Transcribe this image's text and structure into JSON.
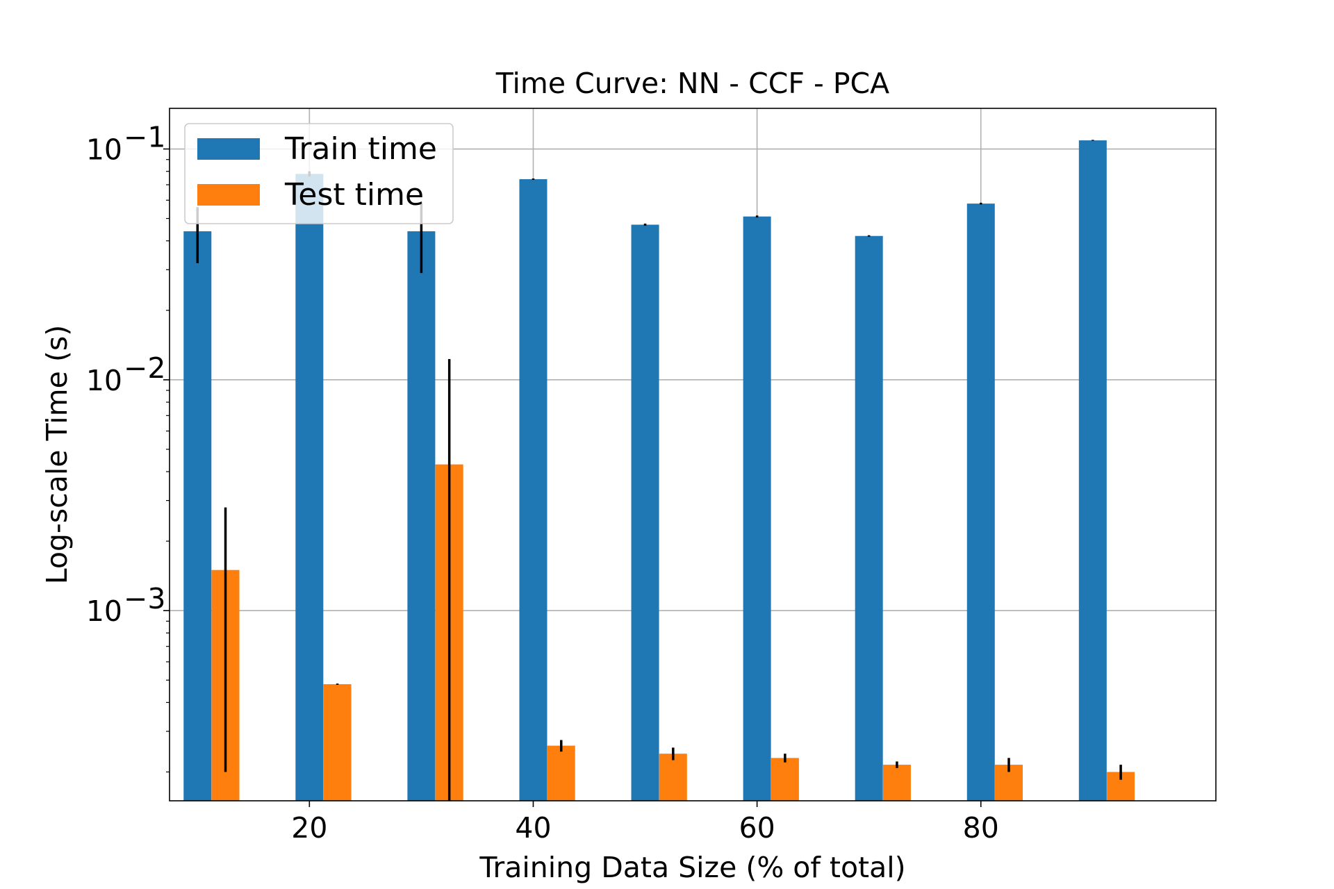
{
  "chart_data": {
    "type": "bar",
    "title": "Time Curve: NN - CCF - PCA",
    "xlabel": "Training Data Size (% of total)",
    "ylabel": "Log-scale Time (s)",
    "yscale": "log",
    "xlim": [
      7.5,
      101
    ],
    "ylim": [
      0.00015,
      0.15
    ],
    "grid": true,
    "legend_position": "top-left",
    "x": [
      10,
      20,
      30,
      40,
      50,
      60,
      70,
      80,
      90
    ],
    "x_ticks": [
      20,
      40,
      60,
      80
    ],
    "y_ticks": [
      {
        "value": 0.1,
        "base": "10",
        "exp": "−1"
      },
      {
        "value": 0.01,
        "base": "10",
        "exp": "−2"
      },
      {
        "value": 0.001,
        "base": "10",
        "exp": "−3"
      }
    ],
    "series": [
      {
        "name": "Train time",
        "color": "#1f77b4",
        "offset": 0,
        "values": [
          0.044,
          0.078,
          0.044,
          0.074,
          0.047,
          0.051,
          0.042,
          0.058,
          0.109
        ],
        "errors": [
          0.012,
          0.002,
          0.015,
          0.0005,
          0.0005,
          0.0005,
          0.0003,
          0.0005,
          0.0005
        ]
      },
      {
        "name": "Test time",
        "color": "#ff7f0e",
        "offset": 2.5,
        "values": [
          0.0015,
          0.00048,
          0.0043,
          0.00026,
          0.00024,
          0.00023,
          0.000215,
          0.000215,
          0.0002
        ],
        "errors": [
          0.0013,
          3e-06,
          0.008,
          1.5e-05,
          1.5e-05,
          1e-05,
          7e-06,
          1.5e-05,
          1.5e-05
        ]
      }
    ]
  }
}
